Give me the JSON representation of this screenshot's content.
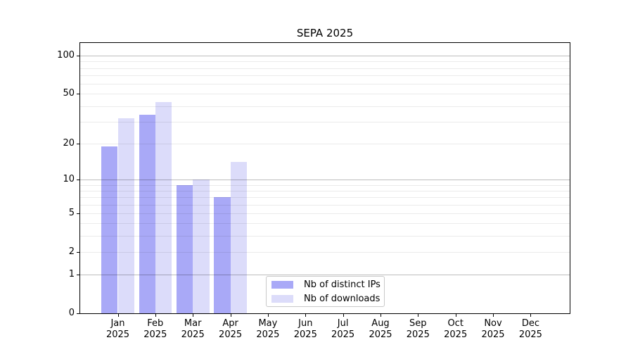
{
  "chart_data": {
    "type": "bar",
    "title": "SEPA 2025",
    "year_label": "2025",
    "categories": [
      "Jan",
      "Feb",
      "Mar",
      "Apr",
      "May",
      "Jun",
      "Jul",
      "Aug",
      "Sep",
      "Oct",
      "Nov",
      "Dec"
    ],
    "series": [
      {
        "name": "Nb of distinct IPs",
        "color": "#a9a9f7",
        "values": [
          19,
          34,
          9,
          7,
          0,
          0,
          0,
          0,
          0,
          0,
          0,
          0
        ]
      },
      {
        "name": "Nb of downloads",
        "color": "#dcdcfa",
        "values": [
          32,
          43,
          10,
          14,
          0,
          0,
          0,
          0,
          0,
          0,
          0,
          0
        ]
      }
    ],
    "y_axis": {
      "scale": "log10(value+1)",
      "ticks": [
        0,
        1,
        2,
        5,
        10,
        20,
        50,
        100
      ],
      "gridlines_faint": [
        2,
        3,
        4,
        5,
        6,
        7,
        8,
        9,
        20,
        30,
        40,
        50,
        60,
        70,
        80,
        90
      ],
      "gridlines_strong": [
        1,
        10,
        100
      ],
      "ylim": [
        0,
        126
      ]
    },
    "legend": {
      "position": "bottom-center"
    },
    "colors": {
      "grid_faint": "rgba(0,0,0,0.08)",
      "grid_strong": "rgba(0,0,0,0.26)",
      "spine": "#000000",
      "text": "#000000"
    }
  }
}
